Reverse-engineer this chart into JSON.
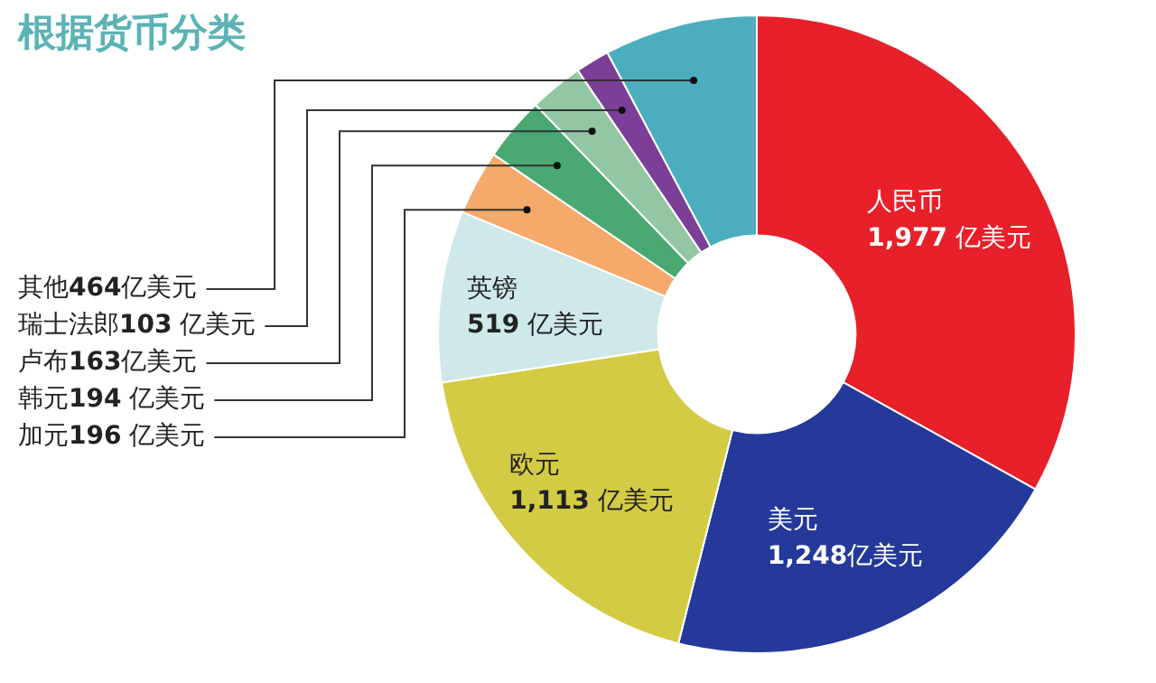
{
  "chart_data": {
    "type": "donut",
    "title": "根据货币分类",
    "categories": [
      "人民币",
      "美元",
      "欧元",
      "英镑",
      "加元",
      "韩元",
      "卢布",
      "瑞士法郎",
      "其他"
    ],
    "values": [
      1977,
      1248,
      1113,
      519,
      196,
      194,
      163,
      103,
      464
    ],
    "colors": [
      "#e8202a",
      "#24399a",
      "#d4cb45",
      "#cfe8ea",
      "#f5a96a",
      "#4aa872",
      "#93c7a4",
      "#7b3f98",
      "#4aaebe"
    ],
    "value_labels": [
      "1,977 亿美元",
      "1,248亿美元",
      "1,113 亿美元",
      "519 亿美元",
      "196 亿美元",
      "194 亿美元",
      "163亿美元",
      "103 亿美元",
      "464亿美元"
    ]
  }
}
